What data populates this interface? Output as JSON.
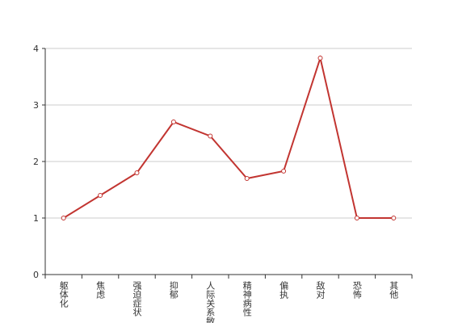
{
  "chart_data": {
    "type": "line",
    "categories": [
      "躯体化",
      "焦虑",
      "强迫症状",
      "抑郁",
      "人际关系敏感",
      "精神病性",
      "偏执",
      "敌对",
      "恐怖",
      "其他"
    ],
    "values": [
      1.0,
      1.4,
      1.8,
      2.7,
      2.45,
      1.7,
      1.83,
      3.83,
      1.0,
      1.0
    ],
    "color": "#c23531",
    "ylim": [
      0,
      4
    ],
    "yticks": [
      0,
      1,
      2,
      3,
      4
    ],
    "grid": true
  }
}
